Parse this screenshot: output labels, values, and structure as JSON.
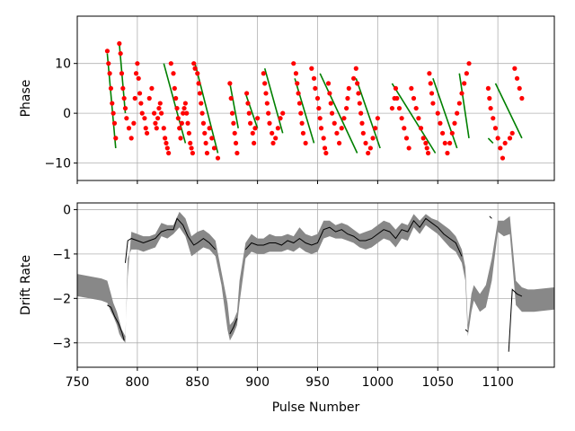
{
  "chart_data": [
    {
      "type": "scatter",
      "xlabel": "",
      "ylabel": "Phase",
      "xlim": [
        750,
        1147
      ],
      "ylim": [
        -13.5,
        19.5
      ],
      "yticks": [
        10,
        0,
        -10
      ],
      "ytick_labels": [
        "10",
        "0",
        "−10"
      ],
      "xticks": [
        750,
        800,
        850,
        900,
        950,
        1000,
        1050,
        1100
      ],
      "grid": true,
      "colors": {
        "points": "#ff0000",
        "fit_lines": "#008000",
        "grid": "#b0b0b0"
      },
      "series": [
        {
          "points_x": [
            775,
            776,
            777,
            778,
            779,
            780,
            781,
            782,
            785,
            786,
            787,
            788,
            789,
            790,
            791,
            793,
            795,
            797,
            798,
            799,
            800,
            801,
            802,
            803,
            804,
            806,
            807,
            808,
            810,
            812,
            814,
            815,
            816,
            817,
            818,
            819,
            820,
            822,
            823,
            824,
            825,
            826,
            828,
            830,
            831,
            832,
            833,
            834,
            835,
            836,
            837,
            838,
            839,
            840,
            841,
            842,
            843,
            844,
            845,
            846,
            847,
            848,
            850,
            851,
            852,
            853,
            854,
            855,
            856,
            857,
            858,
            860,
            862,
            864,
            867,
            877,
            878,
            879,
            880,
            881,
            882,
            883,
            891,
            892,
            893,
            894,
            896,
            897,
            898,
            900,
            905,
            906,
            907,
            908,
            909,
            910,
            912,
            913,
            915,
            917,
            919,
            921,
            930,
            932,
            933,
            934,
            935,
            936,
            937,
            938,
            940,
            945,
            947,
            948,
            950,
            951,
            952,
            953,
            955,
            956,
            957,
            959,
            960,
            961,
            962,
            964,
            966,
            968,
            970,
            972,
            974,
            975,
            976,
            980,
            982,
            983,
            984,
            985,
            986,
            987,
            988,
            990,
            992,
            994,
            996,
            998,
            1000,
            1012,
            1014,
            1015,
            1016,
            1018,
            1020,
            1022,
            1024,
            1026,
            1028,
            1030,
            1032,
            1034,
            1036,
            1038,
            1040,
            1041,
            1042,
            1043,
            1044,
            1045,
            1046,
            1050,
            1052,
            1054,
            1056,
            1058,
            1060,
            1062,
            1064,
            1066,
            1068,
            1070,
            1072,
            1074,
            1076,
            1092,
            1093,
            1094,
            1096,
            1098,
            1100,
            1102,
            1104,
            1106,
            1110,
            1112,
            1114,
            1116,
            1118,
            1120
          ],
          "points_y": [
            12.5,
            10,
            8,
            5,
            2,
            0,
            -2,
            -5,
            14,
            12,
            8,
            5,
            3,
            1,
            -1,
            -3,
            -5,
            -2,
            3,
            8,
            10,
            7,
            4,
            2,
            0,
            -1,
            -3,
            -4,
            3,
            5,
            0,
            -2,
            -3,
            -1,
            1,
            2,
            0,
            -3,
            -5,
            -6,
            -7,
            -8,
            10,
            8,
            5,
            3,
            1,
            -1,
            -3,
            -5,
            -2,
            0,
            1,
            2,
            0,
            -2,
            -4,
            -6,
            -7,
            -8,
            10,
            9,
            8,
            6,
            4,
            2,
            0,
            -2,
            -4,
            -6,
            -8,
            -3,
            -5,
            -7,
            -9,
            6,
            3,
            0,
            -2,
            -4,
            -6,
            -8,
            4,
            2,
            0,
            -2,
            -4,
            -6,
            -3,
            -1,
            8,
            6,
            4,
            2,
            0,
            -2,
            -4,
            -6,
            -5,
            -3,
            -1,
            0,
            10,
            8,
            6,
            4,
            2,
            0,
            -2,
            -4,
            -6,
            9,
            7,
            5,
            3,
            1,
            -1,
            -3,
            -5,
            -7,
            -8,
            6,
            4,
            2,
            0,
            -2,
            -4,
            -6,
            -3,
            -1,
            1,
            3,
            5,
            7,
            9,
            6,
            4,
            2,
            0,
            -2,
            -4,
            -6,
            -8,
            -7,
            -5,
            -3,
            -1,
            1,
            3,
            5,
            3,
            1,
            -1,
            -3,
            -5,
            -7,
            5,
            3,
            1,
            -1,
            -3,
            -5,
            -6,
            -7,
            -8,
            8,
            6,
            4,
            2,
            0,
            -2,
            -4,
            -6,
            -8,
            -6,
            -4,
            -2,
            0,
            2,
            4,
            6,
            8,
            10,
            5,
            3,
            1,
            -1,
            -3,
            -5,
            -7,
            -9,
            -6,
            -5,
            -4,
            9,
            7,
            5,
            3,
            1,
            -1,
            -3,
            -5,
            -7,
            8,
            6,
            4,
            2,
            0,
            -2
          ],
          "fit_lines": [
            [
              [
                775,
                12
              ],
              [
                782,
                -7
              ]
            ],
            [
              [
                785,
                14
              ],
              [
                790,
                0
              ]
            ],
            [
              [
                822,
                10
              ],
              [
                840,
                -6
              ]
            ],
            [
              [
                848,
                10
              ],
              [
                867,
                -8
              ]
            ],
            [
              [
                877,
                6
              ],
              [
                884,
                -3
              ]
            ],
            [
              [
                890,
                4
              ],
              [
                900,
                -3
              ]
            ],
            [
              [
                906,
                9
              ],
              [
                921,
                -4
              ]
            ],
            [
              [
                931,
                7
              ],
              [
                947,
                -6
              ]
            ],
            [
              [
                952,
                8
              ],
              [
                983,
                -8
              ]
            ],
            [
              [
                982,
                7
              ],
              [
                1002,
                -7
              ]
            ],
            [
              [
                1012,
                6
              ],
              [
                1048,
                -8
              ]
            ],
            [
              [
                1046,
                7
              ],
              [
                1066,
                -7
              ]
            ],
            [
              [
                1068,
                8
              ],
              [
                1076,
                -5
              ]
            ],
            [
              [
                1092,
                -5
              ],
              [
                1096,
                -6
              ]
            ],
            [
              [
                1098,
                6
              ],
              [
                1120,
                -5
              ]
            ]
          ]
        }
      ]
    },
    {
      "type": "line",
      "xlabel": "Pulse Number",
      "ylabel": "Drift Rate",
      "xlim": [
        750,
        1147
      ],
      "ylim": [
        -3.55,
        0.15
      ],
      "yticks": [
        0,
        -1,
        -2,
        -3
      ],
      "ytick_labels": [
        "0",
        "−1",
        "−2",
        "−3"
      ],
      "xticks": [
        750,
        800,
        850,
        900,
        950,
        1000,
        1050,
        1100
      ],
      "xtick_labels": [
        "750",
        "800",
        "850",
        "900",
        "950",
        "1000",
        "1050",
        "1100"
      ],
      "grid": true,
      "colors": {
        "band": "#888888",
        "line": "#000000",
        "grid": "#b0b0b0"
      },
      "band_x": [
        750,
        760,
        770,
        775,
        778,
        780,
        783,
        785,
        787,
        790,
        792,
        795,
        800,
        805,
        810,
        815,
        820,
        825,
        830,
        835,
        840,
        845,
        850,
        855,
        860,
        865,
        870,
        875,
        877,
        880,
        883,
        885,
        890,
        895,
        900,
        905,
        910,
        915,
        920,
        925,
        930,
        935,
        940,
        945,
        950,
        955,
        960,
        965,
        970,
        975,
        980,
        985,
        990,
        995,
        1000,
        1005,
        1010,
        1015,
        1020,
        1025,
        1030,
        1035,
        1040,
        1045,
        1050,
        1055,
        1060,
        1065,
        1070,
        1073,
        1075,
        1078,
        1080,
        1085,
        1090,
        1095,
        1100,
        1105,
        1110,
        1115,
        1120,
        1125,
        1130,
        1147
      ],
      "band_upper": [
        -1.45,
        -1.5,
        -1.55,
        -1.6,
        -1.9,
        -2.1,
        -2.3,
        -2.5,
        -2.7,
        -2.85,
        -1.5,
        -0.5,
        -0.55,
        -0.6,
        -0.6,
        -0.55,
        -0.3,
        -0.35,
        -0.35,
        -0.05,
        -0.2,
        -0.6,
        -0.5,
        -0.45,
        -0.55,
        -0.7,
        -1.4,
        -2.1,
        -2.6,
        -2.5,
        -2.3,
        -1.6,
        -0.75,
        -0.55,
        -0.65,
        -0.65,
        -0.55,
        -0.6,
        -0.6,
        -0.55,
        -0.6,
        -0.4,
        -0.55,
        -0.6,
        -0.55,
        -0.25,
        -0.25,
        -0.35,
        -0.3,
        -0.35,
        -0.45,
        -0.55,
        -0.5,
        -0.45,
        -0.35,
        -0.25,
        -0.3,
        -0.45,
        -0.3,
        -0.35,
        -0.1,
        -0.25,
        -0.1,
        -0.2,
        -0.25,
        -0.35,
        -0.45,
        -0.6,
        -0.9,
        -1.3,
        -2.6,
        -1.9,
        -1.7,
        -1.9,
        -1.7,
        -1.1,
        -0.25,
        -0.25,
        -0.15,
        -1.6,
        -1.75,
        -1.8,
        -1.8,
        -1.75
      ],
      "band_lower": [
        -1.95,
        -2.0,
        -2.05,
        -2.1,
        -2.3,
        -2.4,
        -2.6,
        -2.8,
        -2.9,
        -3.0,
        -1.1,
        -0.9,
        -0.9,
        -0.95,
        -0.9,
        -0.85,
        -0.6,
        -0.65,
        -0.55,
        -0.4,
        -0.6,
        -1.05,
        -0.95,
        -0.85,
        -0.9,
        -1.05,
        -1.7,
        -2.7,
        -2.95,
        -2.8,
        -2.6,
        -2.1,
        -1.1,
        -0.95,
        -1.0,
        -1.0,
        -0.95,
        -0.95,
        -0.95,
        -0.9,
        -0.95,
        -0.85,
        -0.95,
        -1.0,
        -0.95,
        -0.65,
        -0.6,
        -0.65,
        -0.65,
        -0.7,
        -0.75,
        -0.85,
        -0.9,
        -0.85,
        -0.75,
        -0.65,
        -0.7,
        -0.85,
        -0.65,
        -0.7,
        -0.4,
        -0.55,
        -0.35,
        -0.45,
        -0.55,
        -0.7,
        -0.85,
        -0.95,
        -1.2,
        -1.6,
        -2.85,
        -2.3,
        -2.05,
        -2.3,
        -2.2,
        -1.6,
        -0.5,
        -0.6,
        -0.55,
        -2.15,
        -2.3,
        -2.3,
        -2.3,
        -2.25
      ],
      "line_segments": [
        [
          [
            775,
            -2.15
          ],
          [
            778,
            -2.2
          ],
          [
            781,
            -2.4
          ],
          [
            784,
            -2.55
          ],
          [
            787,
            -2.75
          ],
          [
            789,
            -2.95
          ]
        ],
        [
          [
            790,
            -1.2
          ],
          [
            792,
            -0.7
          ],
          [
            795,
            -0.65
          ],
          [
            800,
            -0.7
          ],
          [
            805,
            -0.75
          ],
          [
            810,
            -0.7
          ],
          [
            815,
            -0.65
          ],
          [
            820,
            -0.5
          ],
          [
            825,
            -0.45
          ],
          [
            830,
            -0.45
          ],
          [
            833,
            -0.2
          ],
          [
            838,
            -0.35
          ],
          [
            842,
            -0.6
          ],
          [
            847,
            -0.8
          ],
          [
            850,
            -0.75
          ],
          [
            855,
            -0.65
          ],
          [
            860,
            -0.75
          ],
          [
            865,
            -0.9
          ]
        ],
        [
          [
            877,
            -2.8
          ],
          [
            880,
            -2.65
          ],
          [
            883,
            -2.45
          ]
        ],
        [
          [
            890,
            -0.9
          ],
          [
            895,
            -0.75
          ],
          [
            900,
            -0.8
          ],
          [
            905,
            -0.8
          ],
          [
            910,
            -0.75
          ],
          [
            915,
            -0.75
          ],
          [
            920,
            -0.8
          ],
          [
            925,
            -0.7
          ],
          [
            930,
            -0.75
          ],
          [
            935,
            -0.65
          ],
          [
            940,
            -0.75
          ],
          [
            945,
            -0.8
          ],
          [
            950,
            -0.75
          ],
          [
            955,
            -0.45
          ],
          [
            960,
            -0.4
          ],
          [
            965,
            -0.5
          ],
          [
            970,
            -0.45
          ],
          [
            975,
            -0.55
          ],
          [
            980,
            -0.6
          ],
          [
            985,
            -0.7
          ],
          [
            990,
            -0.7
          ],
          [
            995,
            -0.65
          ],
          [
            1000,
            -0.55
          ],
          [
            1005,
            -0.45
          ],
          [
            1010,
            -0.5
          ],
          [
            1015,
            -0.65
          ],
          [
            1020,
            -0.45
          ],
          [
            1025,
            -0.5
          ],
          [
            1030,
            -0.25
          ],
          [
            1035,
            -0.4
          ],
          [
            1040,
            -0.2
          ],
          [
            1045,
            -0.3
          ],
          [
            1050,
            -0.4
          ],
          [
            1055,
            -0.55
          ],
          [
            1060,
            -0.65
          ],
          [
            1065,
            -0.75
          ],
          [
            1070,
            -1.05
          ]
        ],
        [
          [
            1073,
            -2.7
          ],
          [
            1075,
            -2.75
          ]
        ],
        [
          [
            1093,
            -0.15
          ],
          [
            1095,
            -0.2
          ]
        ],
        [
          [
            1109,
            -3.2
          ],
          [
            1112,
            -1.8
          ],
          [
            1116,
            -1.9
          ],
          [
            1120,
            -1.95
          ]
        ]
      ]
    }
  ]
}
